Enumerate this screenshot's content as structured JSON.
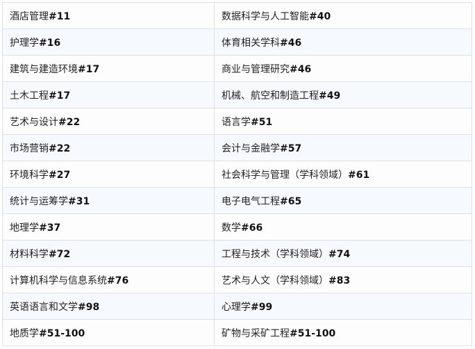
{
  "rows": [
    [
      {
        "name": "酒店管理",
        "rank": "#11"
      },
      {
        "name": "数据科学与人工智能",
        "rank": "#40"
      }
    ],
    [
      {
        "name": "护理学",
        "rank": "#16"
      },
      {
        "name": "体育相关学科",
        "rank": "#46"
      }
    ],
    [
      {
        "name": "建筑与建造环境",
        "rank": "#17"
      },
      {
        "name": "商业与管理研究",
        "rank": "#46"
      }
    ],
    [
      {
        "name": "土木工程",
        "rank": "#17"
      },
      {
        "name": "机械、航空和制造工程",
        "rank": "#49"
      }
    ],
    [
      {
        "name": "艺术与设计",
        "rank": "#22"
      },
      {
        "name": "语言学",
        "rank": "#51"
      }
    ],
    [
      {
        "name": "市场营销",
        "rank": "#22"
      },
      {
        "name": "会计与金融学",
        "rank": "#57"
      }
    ],
    [
      {
        "name": "环境科学",
        "rank": "#27"
      },
      {
        "name": "社会科学与管理（学科领域）",
        "rank": "#61"
      }
    ],
    [
      {
        "name": "统计与运筹学",
        "rank": "#31"
      },
      {
        "name": "电子电气工程",
        "rank": "#65"
      }
    ],
    [
      {
        "name": "地理学",
        "rank": "#37"
      },
      {
        "name": "数学",
        "rank": "#66"
      }
    ],
    [
      {
        "name": "材料科学",
        "rank": "#72"
      },
      {
        "name": "工程与技术（学科领域）",
        "rank": "#74"
      }
    ],
    [
      {
        "name": "计算机科学与信息系统",
        "rank": "#76"
      },
      {
        "name": "艺术与人文（学科领域）",
        "rank": "#83"
      }
    ],
    [
      {
        "name": "英语语言和文学",
        "rank": "#98"
      },
      {
        "name": "心理学",
        "rank": "#99"
      }
    ],
    [
      {
        "name": "地质学",
        "rank": "#51-100"
      },
      {
        "name": "矿物与采矿工程",
        "rank": "#51-100"
      }
    ]
  ]
}
